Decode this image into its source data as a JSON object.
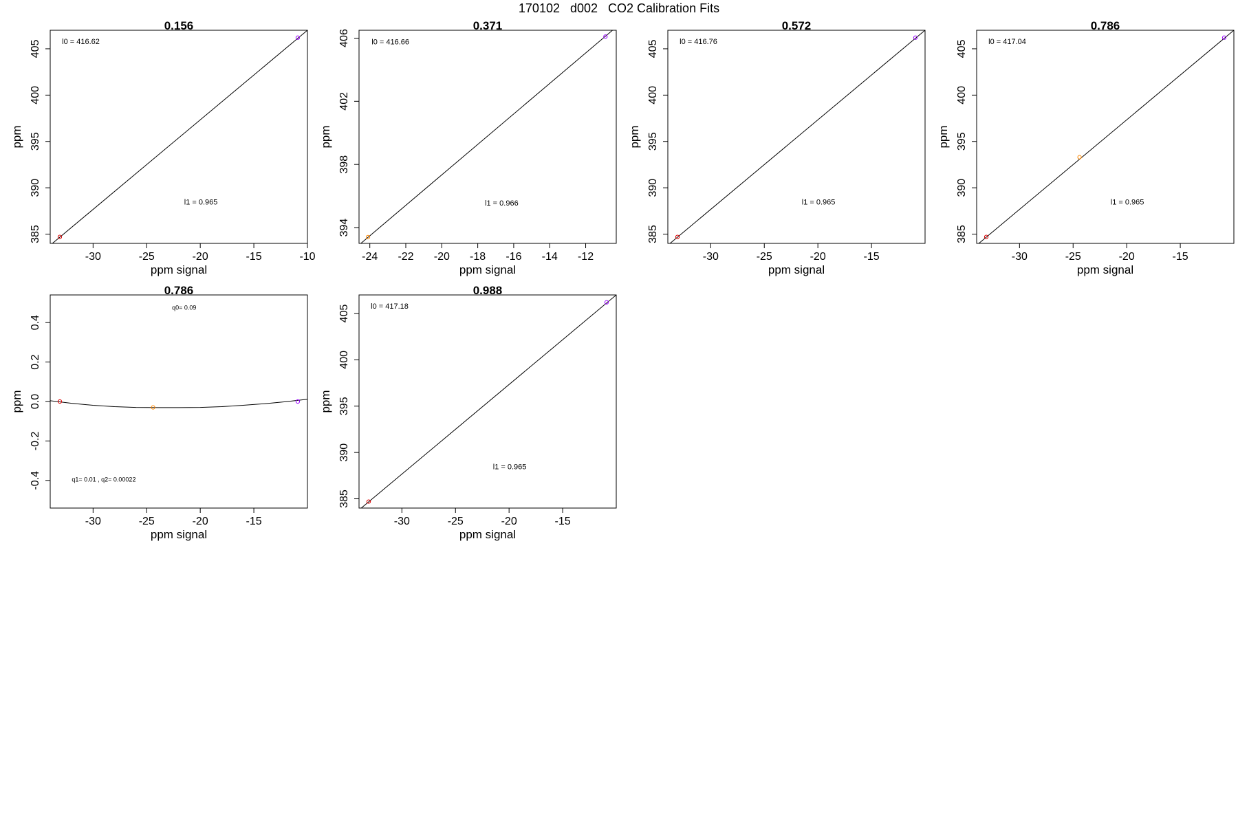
{
  "figure": {
    "title": "170102   d002   CO2 Calibration Fits"
  },
  "chart_data": [
    {
      "type": "line",
      "title": "0.156",
      "xlabel": "ppm signal",
      "ylabel": "ppm",
      "xlim": [
        -34,
        -10
      ],
      "ylim": [
        384,
        407
      ],
      "xticks": [
        -30,
        -25,
        -20,
        -15,
        -10
      ],
      "yticks": [
        385,
        390,
        395,
        400,
        405
      ],
      "points": [
        {
          "x": -33.1,
          "y": 384.7,
          "color": "#dd0000"
        },
        {
          "x": -10.9,
          "y": 406.2,
          "color": "#9900ff"
        }
      ],
      "line": {
        "x": [
          -34,
          -10
        ],
        "y": [
          383.8,
          407.0
        ]
      },
      "annotations": [
        {
          "text": "l0 =  416.62",
          "x": -32.9,
          "y": 405.5
        },
        {
          "text": "l1 =  0.965",
          "x": -21.5,
          "y": 388.2
        }
      ]
    },
    {
      "type": "line",
      "title": "0.371",
      "xlabel": "ppm signal",
      "ylabel": "ppm",
      "xlim": [
        -24.6,
        -10.3
      ],
      "ylim": [
        393,
        406.5
      ],
      "xticks": [
        -24,
        -22,
        -20,
        -18,
        -16,
        -14,
        -12
      ],
      "yticks": [
        394,
        398,
        402,
        406
      ],
      "points": [
        {
          "x": -24.1,
          "y": 393.4,
          "color": "#ff8800"
        },
        {
          "x": -10.9,
          "y": 406.1,
          "color": "#9900ff"
        }
      ],
      "line": {
        "x": [
          -24.6,
          -10.3
        ],
        "y": [
          392.9,
          406.7
        ]
      },
      "annotations": [
        {
          "text": "l0 =  416.66",
          "x": -23.9,
          "y": 405.6
        },
        {
          "text": "l1 =  0.966",
          "x": -17.6,
          "y": 395.4
        }
      ]
    },
    {
      "type": "line",
      "title": "0.572",
      "xlabel": "ppm signal",
      "ylabel": "ppm",
      "xlim": [
        -34,
        -10
      ],
      "ylim": [
        384,
        407
      ],
      "xticks": [
        -30,
        -25,
        -20,
        -15
      ],
      "yticks": [
        385,
        390,
        395,
        400,
        405
      ],
      "points": [
        {
          "x": -33.1,
          "y": 384.7,
          "color": "#dd0000"
        },
        {
          "x": -10.9,
          "y": 406.2,
          "color": "#9900ff"
        }
      ],
      "line": {
        "x": [
          -34,
          -10
        ],
        "y": [
          383.8,
          407.0
        ]
      },
      "annotations": [
        {
          "text": "l0 =  416.76",
          "x": -32.9,
          "y": 405.5
        },
        {
          "text": "l1 =  0.965",
          "x": -21.5,
          "y": 388.2
        }
      ]
    },
    {
      "type": "line",
      "title": "0.786",
      "xlabel": "ppm signal",
      "ylabel": "ppm",
      "xlim": [
        -34,
        -10
      ],
      "ylim": [
        384,
        407
      ],
      "xticks": [
        -30,
        -25,
        -20,
        -15
      ],
      "yticks": [
        385,
        390,
        395,
        400,
        405
      ],
      "points": [
        {
          "x": -33.1,
          "y": 384.7,
          "color": "#dd0000"
        },
        {
          "x": -24.4,
          "y": 393.3,
          "color": "#ff8800"
        },
        {
          "x": -10.9,
          "y": 406.2,
          "color": "#9900ff"
        }
      ],
      "line": {
        "x": [
          -34,
          -10
        ],
        "y": [
          383.8,
          407.0
        ]
      },
      "annotations": [
        {
          "text": "l0 =  417.04",
          "x": -32.9,
          "y": 405.5
        },
        {
          "text": "l1 =  0.965",
          "x": -21.5,
          "y": 388.2
        }
      ]
    },
    {
      "type": "line",
      "title": "0.786",
      "xlabel": "ppm signal",
      "ylabel": "ppm",
      "xlim": [
        -34,
        -10
      ],
      "ylim": [
        -0.54,
        0.54
      ],
      "xticks": [
        -30,
        -25,
        -20,
        -15
      ],
      "yticks": [
        -0.4,
        -0.2,
        0.0,
        0.2,
        0.4
      ],
      "ytick_labels": [
        "-0.4",
        "-0.2",
        "0.0",
        "0.2",
        "0.4"
      ],
      "points": [
        {
          "x": -33.1,
          "y": 0.0,
          "color": "#dd0000"
        },
        {
          "x": -24.4,
          "y": -0.03,
          "color": "#ff8800"
        },
        {
          "x": -10.9,
          "y": 0.0,
          "color": "#9900ff"
        }
      ],
      "curve": {
        "x": [
          -34,
          -32,
          -30,
          -28,
          -26,
          -24,
          -22,
          -20,
          -18,
          -16,
          -14,
          -12,
          -10
        ],
        "y": [
          0.004,
          -0.009,
          -0.019,
          -0.026,
          -0.03,
          -0.031,
          -0.031,
          -0.03,
          -0.026,
          -0.019,
          -0.011,
          -0.001,
          0.011
        ]
      },
      "annotations": [
        {
          "text": "q0= 0.09",
          "x": -21.5,
          "y": 0.465,
          "small": true
        },
        {
          "text": "q1= 0.01 , q2= 0.00022",
          "x": -29.0,
          "y": -0.405,
          "small": true
        }
      ]
    },
    {
      "type": "line",
      "title": "0.988",
      "xlabel": "ppm signal",
      "ylabel": "ppm",
      "xlim": [
        -34,
        -10
      ],
      "ylim": [
        384,
        407
      ],
      "xticks": [
        -30,
        -25,
        -20,
        -15
      ],
      "yticks": [
        385,
        390,
        395,
        400,
        405
      ],
      "points": [
        {
          "x": -33.1,
          "y": 384.7,
          "color": "#dd0000"
        },
        {
          "x": -10.9,
          "y": 406.2,
          "color": "#9900ff"
        }
      ],
      "line": {
        "x": [
          -34,
          -10
        ],
        "y": [
          383.8,
          407.0
        ]
      },
      "annotations": [
        {
          "text": "l0 =  417.18",
          "x": -32.9,
          "y": 405.5
        },
        {
          "text": "l1 =  0.965",
          "x": -21.5,
          "y": 388.2
        }
      ]
    }
  ]
}
